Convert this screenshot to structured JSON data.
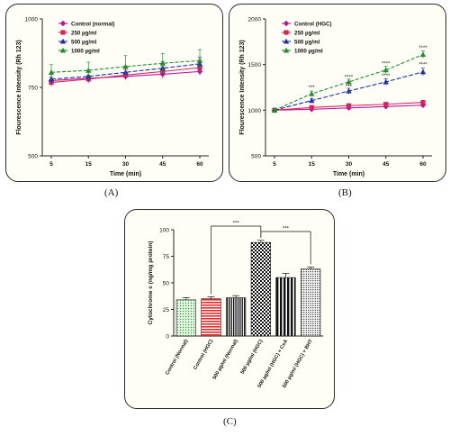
{
  "panel_labels": {
    "a": "(A)",
    "b": "(B)",
    "c": "(C)"
  },
  "chart_data": [
    {
      "type": "line",
      "xlabel": "Time (min)",
      "ylabel": "Flourescence Intensity (Rh 123)",
      "x": [
        5,
        15,
        30,
        45,
        60
      ],
      "ylim": [
        500,
        1000
      ],
      "yticks": [
        500,
        750,
        1000
      ],
      "legend_position": "top-left",
      "series": [
        {
          "name": "Control (normal)",
          "color": "#b5179e",
          "marker": "diamond",
          "values": [
            775,
            783,
            790,
            798,
            808
          ],
          "errors": [
            12,
            12,
            12,
            14,
            14
          ]
        },
        {
          "name": "250 µg/ml",
          "color": "#d6245f",
          "marker": "square",
          "values": [
            768,
            780,
            795,
            808,
            822
          ],
          "errors": [
            15,
            15,
            18,
            18,
            18
          ]
        },
        {
          "name": "500 µg/ml",
          "color": "#1f2fa8",
          "marker": "triangle",
          "values": [
            780,
            790,
            805,
            820,
            836
          ],
          "errors": [
            18,
            20,
            22,
            24,
            24
          ]
        },
        {
          "name": "1000 µg/ml",
          "color": "#1e8e2e",
          "marker": "triangle",
          "values": [
            805,
            812,
            826,
            838,
            848
          ],
          "errors": [
            28,
            30,
            40,
            35,
            40
          ]
        }
      ]
    },
    {
      "type": "line",
      "xlabel": "Time (min)",
      "ylabel": "Flourescence Intensity (Rh 123)",
      "x": [
        5,
        15,
        30,
        45,
        60
      ],
      "ylim": [
        500,
        2000
      ],
      "yticks": [
        500,
        1000,
        1500,
        2000
      ],
      "legend_position": "top-left",
      "series": [
        {
          "name": "Control (HGC)",
          "color": "#b5179e",
          "marker": "diamond",
          "values": [
            1000,
            1010,
            1025,
            1040,
            1055
          ],
          "errors": [
            12,
            14,
            16,
            18,
            20
          ]
        },
        {
          "name": "250 µg/ml",
          "color": "#d6245f",
          "marker": "square",
          "values": [
            1000,
            1030,
            1050,
            1065,
            1085
          ],
          "errors": [
            15,
            18,
            20,
            22,
            24
          ]
        },
        {
          "name": "500 µg/ml",
          "color": "#1f2fa8",
          "marker": "triangle",
          "values": [
            1000,
            1105,
            1210,
            1310,
            1420
          ],
          "errors": [
            15,
            25,
            30,
            35,
            40
          ]
        },
        {
          "name": "1000 µg/ml",
          "color": "#1e8e2e",
          "marker": "triangle",
          "values": [
            1000,
            1180,
            1310,
            1440,
            1610
          ],
          "errors": [
            15,
            30,
            30,
            40,
            40
          ]
        }
      ],
      "annotations": [
        {
          "x": 15,
          "y": 1230,
          "text": "***"
        },
        {
          "x": 30,
          "y": 1345,
          "text": "****"
        },
        {
          "x": 30,
          "y": 1240,
          "text": "***"
        },
        {
          "x": 45,
          "y": 1490,
          "text": "****"
        },
        {
          "x": 45,
          "y": 1360,
          "text": "****"
        },
        {
          "x": 60,
          "y": 1665,
          "text": "****"
        },
        {
          "x": 60,
          "y": 1480,
          "text": "****"
        }
      ]
    },
    {
      "type": "bar",
      "ylabel": "Cytochrome c (ng/mg protein)",
      "ylim": [
        0,
        100
      ],
      "yticks": [
        0,
        25,
        50,
        75,
        100
      ],
      "categories": [
        "Control (Normal)",
        "Control (HGC)",
        "500 µg/ml (Normal)",
        "500 µg/ml (HGC)",
        "500 µg/ml (HGC) + CsA",
        "500 µg/ml (HGC) + BHT"
      ],
      "values": [
        34,
        35,
        36,
        88,
        55,
        63
      ],
      "errors": [
        2,
        2,
        2,
        2,
        4,
        2
      ],
      "patterns": [
        "green-dots",
        "red-stripes",
        "black-stripes",
        "checker",
        "black-bars",
        "dots-black"
      ],
      "significance": [
        {
          "from": 1,
          "to": 3,
          "text": "***"
        },
        {
          "from": 3,
          "to": 5,
          "text": "***"
        }
      ]
    }
  ]
}
